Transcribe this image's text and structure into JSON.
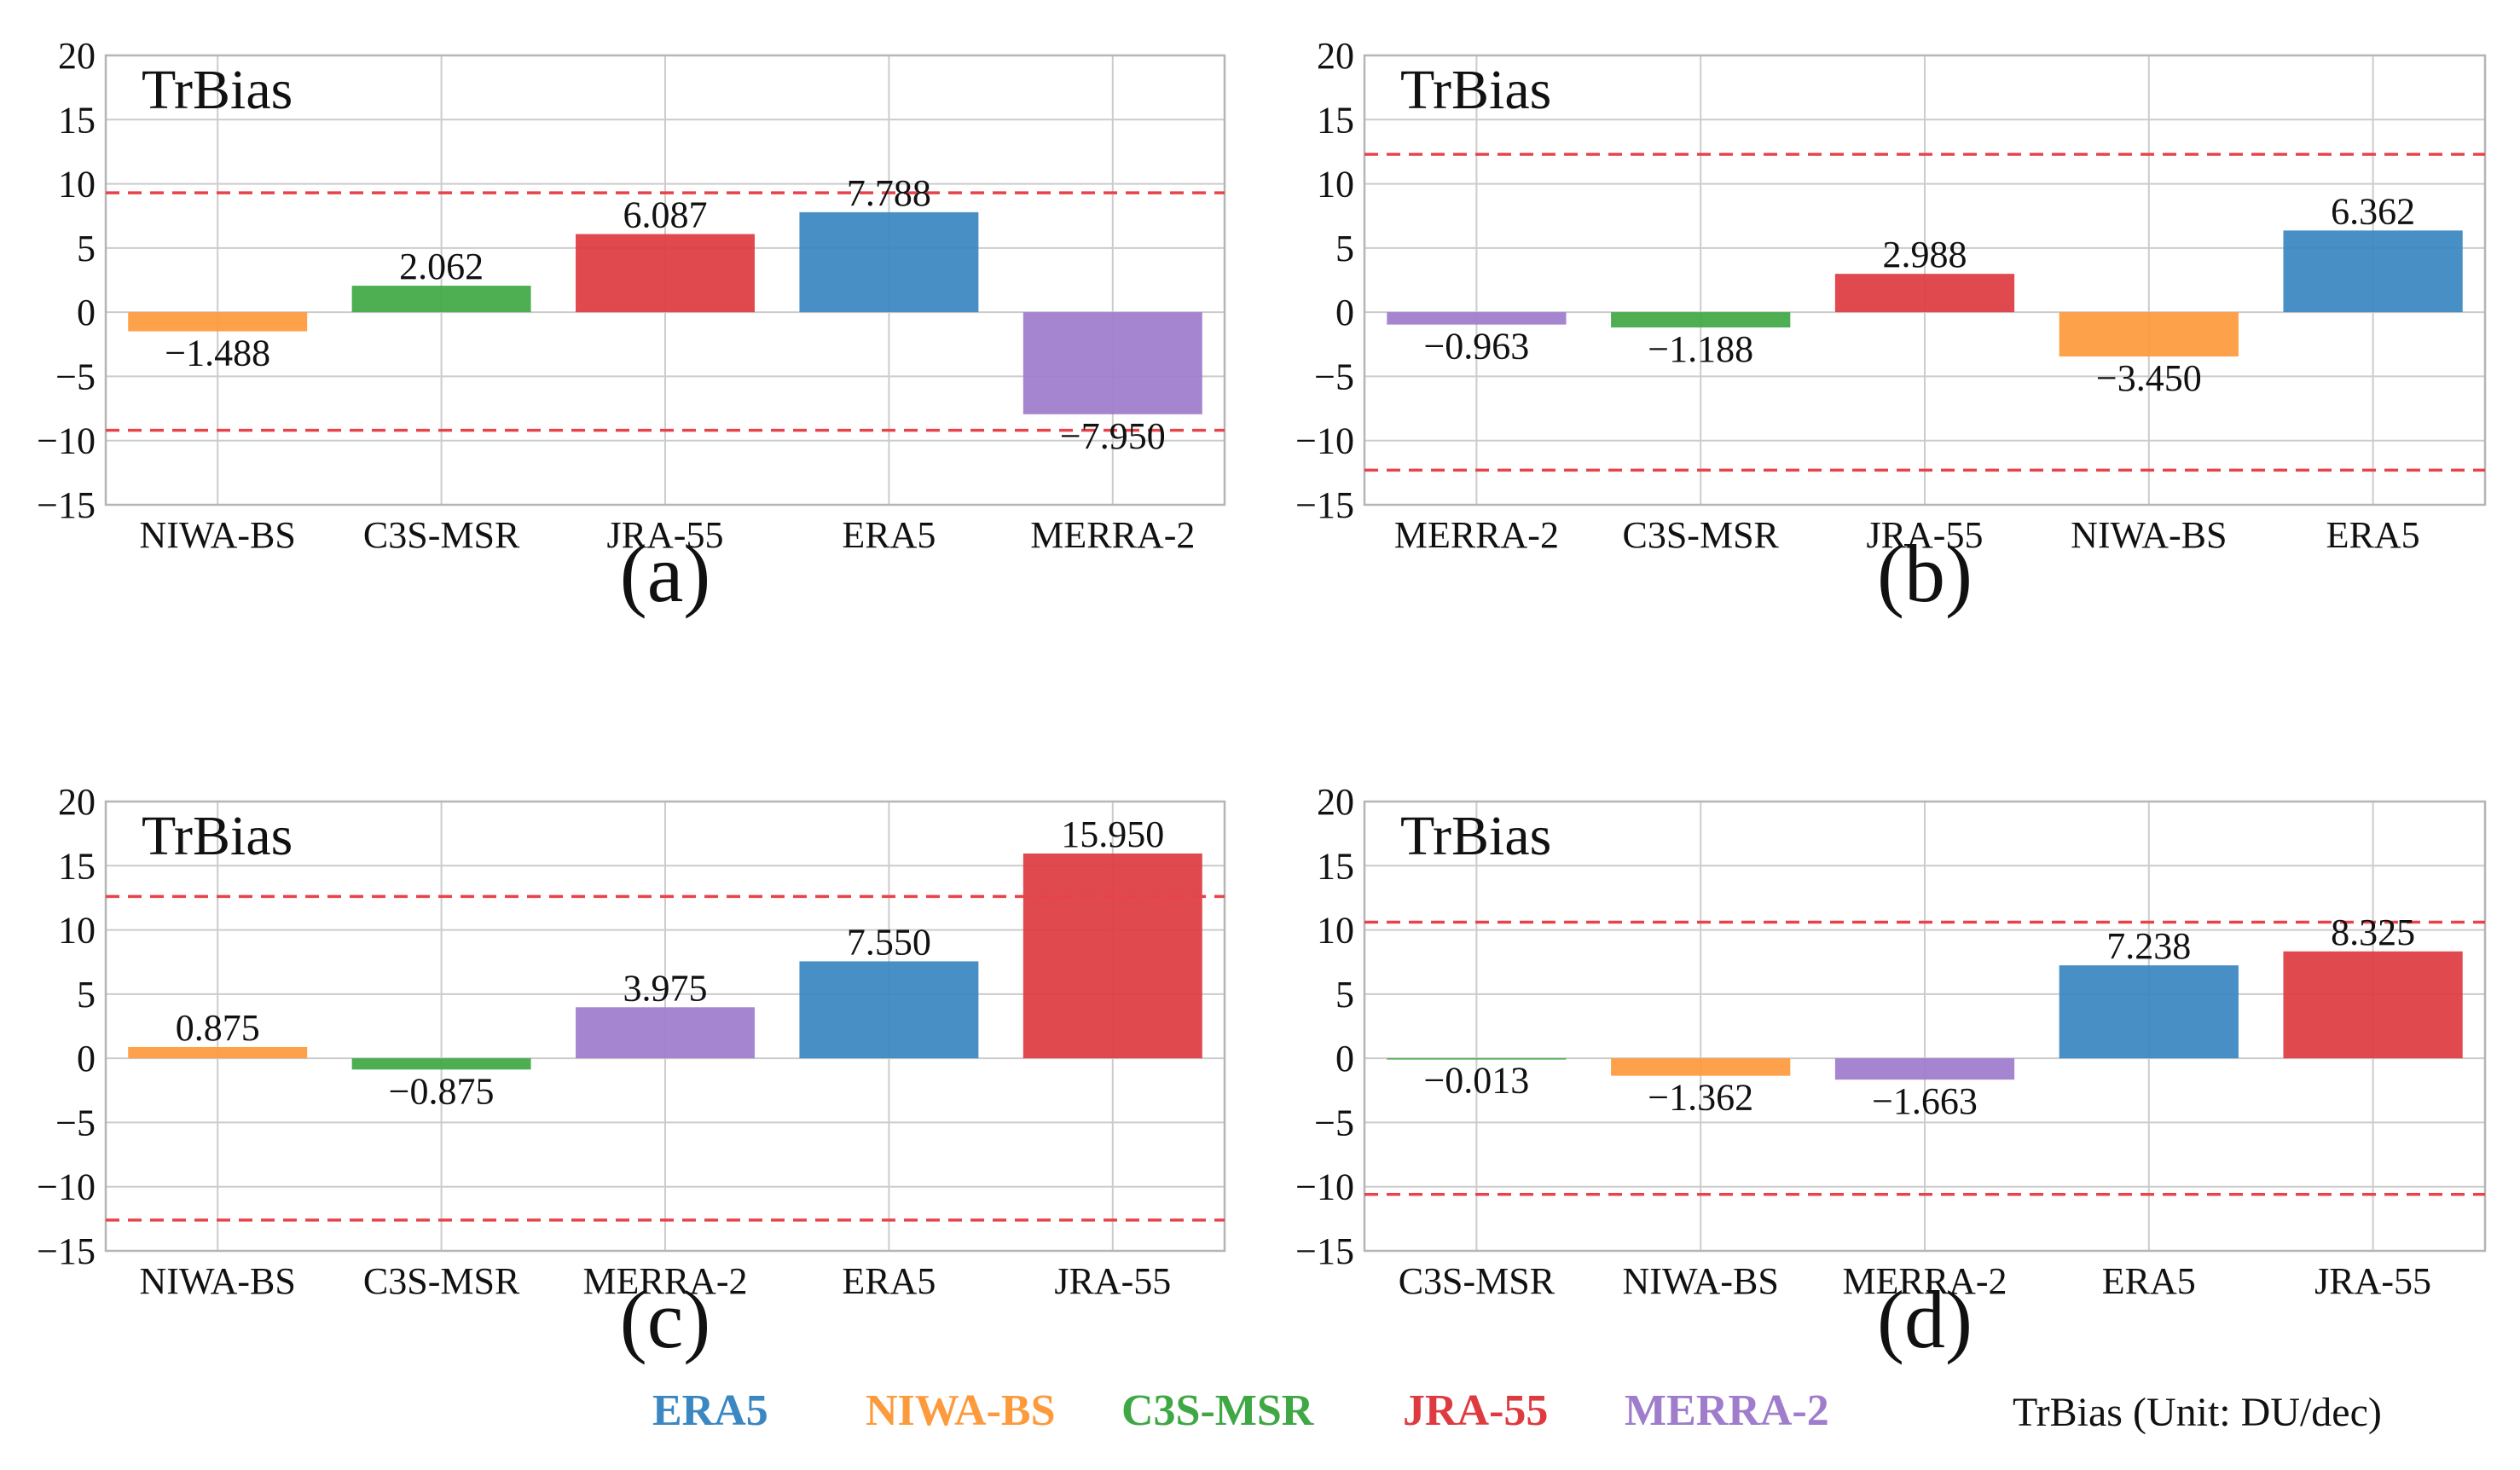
{
  "colors": {
    "ERA5": "#3a87c2",
    "NIWA-BS": "#fd9a3c",
    "C3S-MSR": "#3fa845",
    "JRA-55": "#de3b41",
    "MERRA-2": "#9f7ccc",
    "threshold": "#e8434a",
    "grid": "#cccccc"
  },
  "legend": {
    "items": [
      {
        "name": "ERA5",
        "label": "ERA5"
      },
      {
        "name": "NIWA-BS",
        "label": "NIWA-BS"
      },
      {
        "name": "C3S-MSR",
        "label": "C3S-MSR"
      },
      {
        "name": "JRA-55",
        "label": "JRA-55"
      },
      {
        "name": "MERRA-2",
        "label": "MERRA-2"
      }
    ],
    "note": "TrBias (Unit: DU/dec)"
  },
  "chart_data": [
    {
      "type": "bar",
      "panel": "(a)",
      "title": "TrBias",
      "categories": [
        "NIWA-BS",
        "C3S-MSR",
        "JRA-55",
        "ERA5",
        "MERRA-2"
      ],
      "values": [
        -1.488,
        2.062,
        6.087,
        7.788,
        -7.95
      ],
      "labels": [
        "−1.488",
        "2.062",
        "6.087",
        "7.788",
        "−7.950"
      ],
      "thresholds": [
        9.3,
        -9.2
      ],
      "ylim": [
        -15,
        20
      ],
      "yticks": [
        20,
        15,
        10,
        5,
        0,
        -5,
        -10,
        -15
      ],
      "ytick_labels": [
        "20",
        "15",
        "10",
        "5",
        "0",
        "−5",
        "−10",
        "−15"
      ],
      "grid": true
    },
    {
      "type": "bar",
      "panel": "(b)",
      "title": "TrBias",
      "categories": [
        "MERRA-2",
        "C3S-MSR",
        "JRA-55",
        "NIWA-BS",
        "ERA5"
      ],
      "values": [
        -0.963,
        -1.188,
        2.988,
        -3.45,
        6.362
      ],
      "labels": [
        "−0.963",
        "−1.188",
        "2.988",
        "−3.450",
        "6.362"
      ],
      "thresholds": [
        12.3,
        -12.3
      ],
      "ylim": [
        -15,
        20
      ],
      "yticks": [
        20,
        15,
        10,
        5,
        0,
        -5,
        -10,
        -15
      ],
      "ytick_labels": [
        "20",
        "15",
        "10",
        "5",
        "0",
        "−5",
        "−10",
        "−15"
      ],
      "grid": true
    },
    {
      "type": "bar",
      "panel": "(c)",
      "title": "TrBias",
      "categories": [
        "NIWA-BS",
        "C3S-MSR",
        "MERRA-2",
        "ERA5",
        "JRA-55"
      ],
      "values": [
        0.875,
        -0.875,
        3.975,
        7.55,
        15.95
      ],
      "labels": [
        "0.875",
        "−0.875",
        "3.975",
        "7.550",
        "15.950"
      ],
      "thresholds": [
        12.6,
        -12.6
      ],
      "ylim": [
        -15,
        20
      ],
      "yticks": [
        20,
        15,
        10,
        5,
        0,
        -5,
        -10,
        -15
      ],
      "ytick_labels": [
        "20",
        "15",
        "10",
        "5",
        "0",
        "−5",
        "−10",
        "−15"
      ],
      "grid": true
    },
    {
      "type": "bar",
      "panel": "(d)",
      "title": "TrBias",
      "categories": [
        "C3S-MSR",
        "NIWA-BS",
        "MERRA-2",
        "ERA5",
        "JRA-55"
      ],
      "values": [
        -0.013,
        -1.362,
        -1.663,
        7.238,
        8.325
      ],
      "labels": [
        "−0.013",
        "−1.362",
        "−1.663",
        "7.238",
        "8.325"
      ],
      "thresholds": [
        10.6,
        -10.6
      ],
      "ylim": [
        -15,
        20
      ],
      "yticks": [
        20,
        15,
        10,
        5,
        0,
        -5,
        -10,
        -15
      ],
      "ytick_labels": [
        "20",
        "15",
        "10",
        "5",
        "0",
        "−5",
        "−10",
        "−15"
      ],
      "grid": true
    }
  ]
}
